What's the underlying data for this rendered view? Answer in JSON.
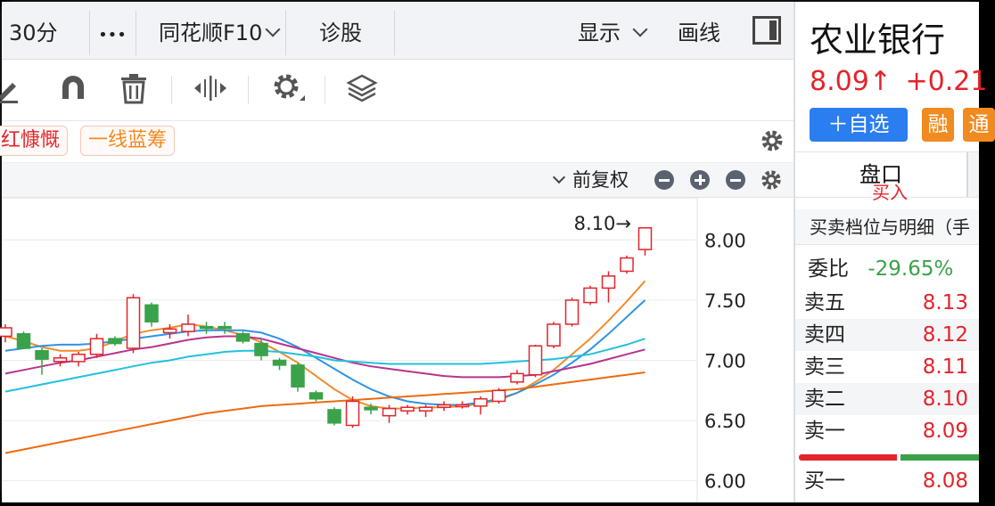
{
  "topbar": {
    "period": "30分",
    "more": "•••",
    "f10": "同花顺F10",
    "diagnose": "诊股",
    "display": "显示",
    "draw": "画线"
  },
  "toolbar": {
    "icons": [
      "pencil-icon",
      "magnet-icon",
      "trash-icon",
      "move-horizontal-icon",
      "gear-icon",
      "layers-icon"
    ]
  },
  "tags": {
    "tag1": "红慷慨",
    "tag2": "一线蓝筹"
  },
  "chartbar": {
    "adjust": "前复权"
  },
  "chart_data": {
    "type": "candlestick",
    "price_annotation": "8.10→",
    "y_ticks": [
      "8.00",
      "7.50",
      "7.00",
      "6.50",
      "6.00"
    ],
    "ylim": [
      5.82,
      8.35
    ],
    "candles": [
      {
        "o": 7.2,
        "h": 7.3,
        "l": 7.15,
        "c": 7.27
      },
      {
        "o": 7.22,
        "h": 7.24,
        "l": 7.1,
        "c": 7.1
      },
      {
        "o": 7.08,
        "h": 7.1,
        "l": 6.88,
        "c": 7.01
      },
      {
        "o": 6.99,
        "h": 7.05,
        "l": 6.95,
        "c": 7.02
      },
      {
        "o": 6.99,
        "h": 7.07,
        "l": 6.95,
        "c": 7.05
      },
      {
        "o": 7.05,
        "h": 7.22,
        "l": 7.02,
        "c": 7.18
      },
      {
        "o": 7.18,
        "h": 7.2,
        "l": 7.12,
        "c": 7.14
      },
      {
        "o": 7.1,
        "h": 7.55,
        "l": 7.06,
        "c": 7.52
      },
      {
        "o": 7.46,
        "h": 7.48,
        "l": 7.28,
        "c": 7.32
      },
      {
        "o": 7.23,
        "h": 7.3,
        "l": 7.18,
        "c": 7.26
      },
      {
        "o": 7.24,
        "h": 7.38,
        "l": 7.2,
        "c": 7.3
      },
      {
        "o": 7.28,
        "h": 7.32,
        "l": 7.22,
        "c": 7.27
      },
      {
        "o": 7.28,
        "h": 7.32,
        "l": 7.22,
        "c": 7.27
      },
      {
        "o": 7.22,
        "h": 7.24,
        "l": 7.14,
        "c": 7.16
      },
      {
        "o": 7.14,
        "h": 7.18,
        "l": 7.0,
        "c": 7.04
      },
      {
        "o": 7.0,
        "h": 7.02,
        "l": 6.92,
        "c": 6.96
      },
      {
        "o": 6.96,
        "h": 6.98,
        "l": 6.74,
        "c": 6.78
      },
      {
        "o": 6.73,
        "h": 6.75,
        "l": 6.66,
        "c": 6.68
      },
      {
        "o": 6.59,
        "h": 6.61,
        "l": 6.46,
        "c": 6.48
      },
      {
        "o": 6.46,
        "h": 6.7,
        "l": 6.44,
        "c": 6.66
      },
      {
        "o": 6.61,
        "h": 6.64,
        "l": 6.55,
        "c": 6.59
      },
      {
        "o": 6.54,
        "h": 6.63,
        "l": 6.48,
        "c": 6.6
      },
      {
        "o": 6.58,
        "h": 6.63,
        "l": 6.55,
        "c": 6.61
      },
      {
        "o": 6.58,
        "h": 6.63,
        "l": 6.53,
        "c": 6.61
      },
      {
        "o": 6.61,
        "h": 6.66,
        "l": 6.58,
        "c": 6.63
      },
      {
        "o": 6.62,
        "h": 6.66,
        "l": 6.6,
        "c": 6.63
      },
      {
        "o": 6.62,
        "h": 6.7,
        "l": 6.55,
        "c": 6.68
      },
      {
        "o": 6.66,
        "h": 6.77,
        "l": 6.64,
        "c": 6.75
      },
      {
        "o": 6.82,
        "h": 6.92,
        "l": 6.8,
        "c": 6.89
      },
      {
        "o": 6.88,
        "h": 7.13,
        "l": 6.86,
        "c": 7.12
      },
      {
        "o": 7.12,
        "h": 7.32,
        "l": 7.1,
        "c": 7.3
      },
      {
        "o": 7.3,
        "h": 7.52,
        "l": 7.28,
        "c": 7.5
      },
      {
        "o": 7.48,
        "h": 7.62,
        "l": 7.46,
        "c": 7.6
      },
      {
        "o": 7.6,
        "h": 7.74,
        "l": 7.48,
        "c": 7.7
      },
      {
        "o": 7.74,
        "h": 7.87,
        "l": 7.72,
        "c": 7.85
      },
      {
        "o": 7.92,
        "h": 8.1,
        "l": 7.87,
        "c": 8.1
      }
    ],
    "ma_series": [
      {
        "color": "#f08c2c",
        "values": [
          7.2,
          7.16,
          7.11,
          7.08,
          7.08,
          7.1,
          7.16,
          7.22,
          7.25,
          7.27,
          7.3,
          7.28,
          7.25,
          7.21,
          7.15,
          7.07,
          6.98,
          6.87,
          6.76,
          6.67,
          6.62,
          6.6,
          6.6,
          6.61,
          6.61,
          6.62,
          6.64,
          6.67,
          6.73,
          6.82,
          6.92,
          7.05,
          7.18,
          7.33,
          7.49,
          7.66
        ]
      },
      {
        "color": "#2f93e6",
        "values": [
          7.08,
          7.1,
          7.12,
          7.13,
          7.13,
          7.14,
          7.16,
          7.18,
          7.2,
          7.22,
          7.24,
          7.25,
          7.25,
          7.25,
          7.23,
          7.18,
          7.11,
          7.02,
          6.93,
          6.84,
          6.76,
          6.7,
          6.66,
          6.64,
          6.63,
          6.63,
          6.65,
          6.68,
          6.73,
          6.8,
          6.88,
          6.98,
          7.09,
          7.22,
          7.36,
          7.5
        ]
      },
      {
        "color": "#b8348c",
        "values": [
          6.89,
          6.92,
          6.95,
          6.98,
          7.0,
          7.03,
          7.06,
          7.09,
          7.11,
          7.14,
          7.17,
          7.19,
          7.2,
          7.2,
          7.18,
          7.14,
          7.1,
          7.06,
          7.02,
          6.98,
          6.95,
          6.93,
          6.91,
          6.89,
          6.87,
          6.86,
          6.86,
          6.86,
          6.87,
          6.88,
          6.91,
          6.94,
          6.97,
          7.01,
          7.05,
          7.09
        ]
      },
      {
        "color": "#22c1dd",
        "values": [
          6.74,
          6.77,
          6.8,
          6.83,
          6.86,
          6.89,
          6.92,
          6.95,
          6.98,
          7.0,
          7.03,
          7.05,
          7.07,
          7.08,
          7.08,
          7.07,
          7.05,
          7.03,
          7.0,
          6.99,
          6.98,
          6.97,
          6.97,
          6.97,
          6.97,
          6.97,
          6.97,
          6.98,
          6.99,
          7.0,
          7.01,
          7.03,
          7.05,
          7.09,
          7.13,
          7.18
        ]
      },
      {
        "color": "#ee6a12",
        "values": [
          6.23,
          6.26,
          6.29,
          6.32,
          6.35,
          6.38,
          6.41,
          6.44,
          6.47,
          6.5,
          6.53,
          6.56,
          6.58,
          6.6,
          6.62,
          6.63,
          6.64,
          6.65,
          6.66,
          6.67,
          6.68,
          6.69,
          6.7,
          6.71,
          6.72,
          6.73,
          6.74,
          6.75,
          6.76,
          6.78,
          6.8,
          6.82,
          6.84,
          6.86,
          6.88,
          6.9
        ]
      }
    ]
  },
  "stock": {
    "name": "农业银行",
    "price": "8.09↑",
    "change": "+0.21",
    "add_watch": "＋自选",
    "margin": "融",
    "margin2": "通"
  },
  "panel": {
    "tab": "盘口",
    "tab_partial": "买入",
    "subtitle": "买卖档位与明细（手",
    "ratio_label": "委比",
    "ratio_value": "-29.65%",
    "asks": [
      {
        "label": "卖五",
        "price": "8.13"
      },
      {
        "label": "卖四",
        "price": "8.12"
      },
      {
        "label": "卖三",
        "price": "8.11"
      },
      {
        "label": "卖二",
        "price": "8.10"
      },
      {
        "label": "卖一",
        "price": "8.09"
      }
    ],
    "bids": [
      {
        "label": "买一",
        "price": "8.08"
      }
    ]
  },
  "colors": {
    "up": "#e3242b",
    "down": "#3aa24a",
    "accent_blue": "#2b7ef0",
    "orange": "#f18a1f"
  }
}
